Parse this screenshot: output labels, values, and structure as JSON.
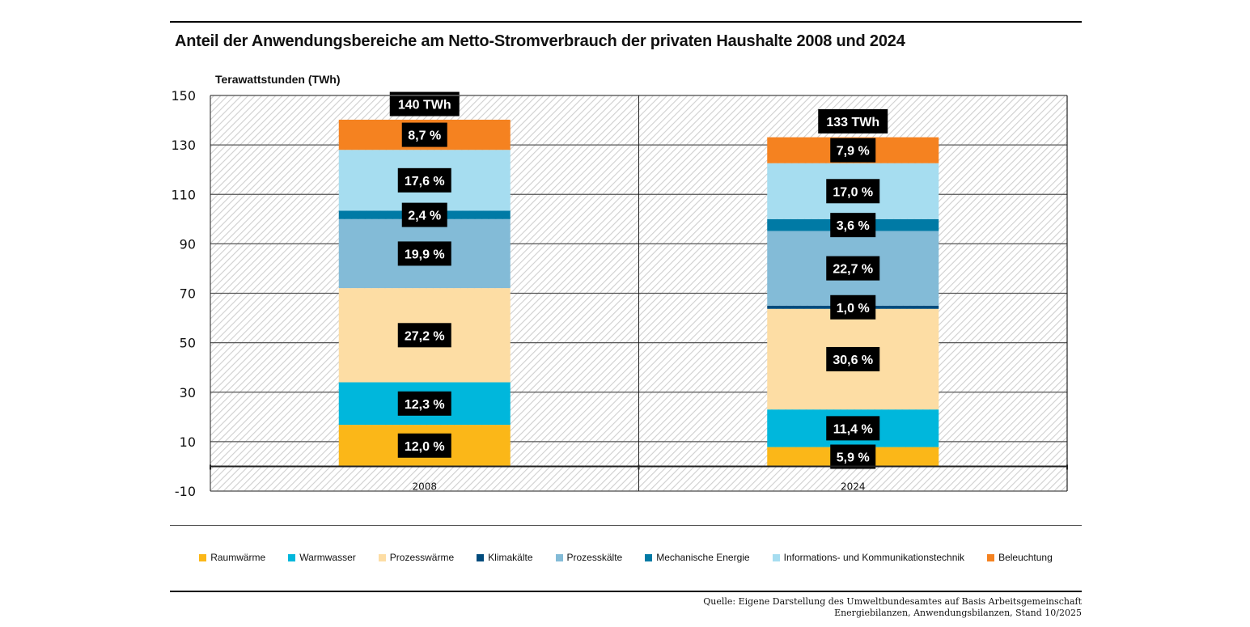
{
  "title": "Anteil der Anwendungsbereiche am Netto-Stromverbrauch der privaten Haushalte 2008 und 2024",
  "source": {
    "line1": "Quelle: Eigene Darstellung des Umweltbundesamtes auf Basis Arbeitsgemeinschaft",
    "line2": "Energiebilanzen, Anwendungsbilanzen, Stand 10/2025"
  },
  "chart_data": {
    "type": "bar",
    "stacked": true,
    "title": "Anteil der Anwendungsbereiche am Netto-Stromverbrauch der privaten Haushalte 2008 und 2024",
    "ylabel": "Terawattstunden (TWh)",
    "xlabel": "",
    "ylim": [
      -10,
      150
    ],
    "yticks": [
      150,
      130,
      110,
      90,
      70,
      50,
      30,
      10,
      -10
    ],
    "grid": true,
    "legend_position": "bottom",
    "categories": [
      "2008",
      "2024"
    ],
    "totals": [
      140,
      133
    ],
    "total_labels": [
      "140 TWh",
      "133 TWh"
    ],
    "series": [
      {
        "name": "Raumwärme",
        "color": "#FBB718",
        "values": [
          16.8,
          7.8
        ],
        "labels": [
          "12,0 %",
          "5,9 %"
        ]
      },
      {
        "name": "Warmwasser",
        "color": "#00B7DC",
        "values": [
          17.2,
          15.2
        ],
        "labels": [
          "12,3 %",
          "11,4 %"
        ]
      },
      {
        "name": "Prozesswärme",
        "color": "#FDDDA4",
        "values": [
          38.1,
          40.7
        ],
        "labels": [
          "27,2 %",
          "30,6 %"
        ]
      },
      {
        "name": "Klimakälte",
        "color": "#004B7C",
        "values": [
          0,
          1.3
        ],
        "labels": [
          "",
          "1,0 %"
        ]
      },
      {
        "name": "Prozesskälte",
        "color": "#83BBD7",
        "values": [
          27.9,
          30.2
        ],
        "labels": [
          "19,9 %",
          "22,7 %"
        ]
      },
      {
        "name": "Mechanische Energie",
        "color": "#007AA5",
        "values": [
          3.4,
          4.8
        ],
        "labels": [
          "2,4 %",
          "3,6 %"
        ]
      },
      {
        "name": "Informations- und Kommunikationstechnik",
        "color": "#A6DDF0",
        "values": [
          24.6,
          22.6
        ],
        "labels": [
          "17,6 %",
          "17,0 %"
        ]
      },
      {
        "name": "Beleuchtung",
        "color": "#F58220",
        "values": [
          12.2,
          10.5
        ],
        "labels": [
          "8,7 %",
          "7,9 %"
        ]
      }
    ]
  }
}
